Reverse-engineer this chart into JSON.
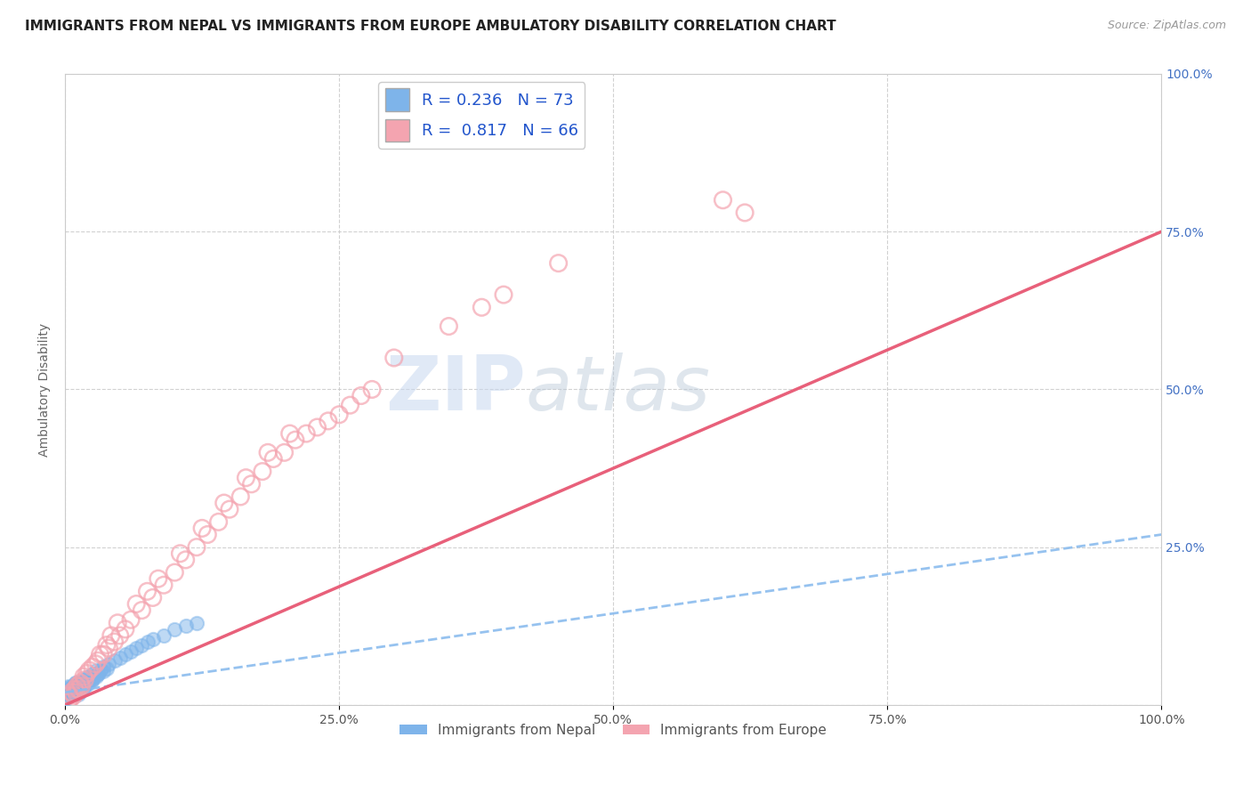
{
  "title": "IMMIGRANTS FROM NEPAL VS IMMIGRANTS FROM EUROPE AMBULATORY DISABILITY CORRELATION CHART",
  "source": "Source: ZipAtlas.com",
  "ylabel": "Ambulatory Disability",
  "xlim": [
    0,
    100
  ],
  "ylim": [
    0,
    100
  ],
  "x_ticks": [
    0,
    25,
    50,
    75,
    100
  ],
  "x_tick_labels": [
    "0.0%",
    "25.0%",
    "50.0%",
    "75.0%",
    "100.0%"
  ],
  "y_ticks": [
    0,
    25,
    50,
    75,
    100
  ],
  "y_tick_labels_right": [
    "",
    "25.0%",
    "50.0%",
    "75.0%",
    "100.0%"
  ],
  "nepal_color": "#7eb4ea",
  "europe_color": "#f4a4b0",
  "nepal_line_color": "#8bbcee",
  "europe_line_color": "#e8607a",
  "nepal_R": 0.236,
  "nepal_N": 73,
  "europe_R": 0.817,
  "europe_N": 66,
  "legend_label_nepal": "Immigrants from Nepal",
  "legend_label_europe": "Immigrants from Europe",
  "watermark_zip": "ZIP",
  "watermark_atlas": "atlas",
  "nepal_scatter_x": [
    0.1,
    0.15,
    0.2,
    0.25,
    0.3,
    0.35,
    0.4,
    0.45,
    0.5,
    0.55,
    0.6,
    0.65,
    0.7,
    0.75,
    0.8,
    0.85,
    0.9,
    0.95,
    1.0,
    1.1,
    1.2,
    1.3,
    1.4,
    1.5,
    1.6,
    1.7,
    1.8,
    1.9,
    2.0,
    2.1,
    2.2,
    2.3,
    2.4,
    2.5,
    2.6,
    2.8,
    3.0,
    3.2,
    3.5,
    3.8,
    4.0,
    4.5,
    5.0,
    5.5,
    6.0,
    6.5,
    7.0,
    7.5,
    8.0,
    9.0,
    10.0,
    11.0,
    12.0,
    0.1,
    0.2,
    0.3,
    0.4,
    0.5,
    0.6,
    0.7,
    0.8,
    0.9,
    1.0,
    1.2,
    1.4,
    1.6,
    1.8,
    2.0,
    2.2,
    2.5,
    2.8,
    3.0,
    3.5
  ],
  "nepal_scatter_y": [
    1.5,
    2.0,
    2.5,
    1.8,
    2.2,
    3.0,
    2.8,
    1.5,
    2.0,
    1.8,
    2.5,
    2.2,
    3.0,
    2.8,
    2.5,
    3.2,
    2.0,
    2.8,
    3.5,
    2.0,
    2.5,
    3.0,
    2.8,
    3.5,
    3.2,
    4.0,
    3.8,
    4.2,
    3.5,
    4.5,
    4.0,
    4.2,
    3.8,
    5.0,
    4.5,
    5.5,
    5.0,
    5.5,
    6.0,
    5.8,
    6.5,
    7.0,
    7.5,
    8.0,
    8.5,
    9.0,
    9.5,
    10.0,
    10.5,
    11.0,
    12.0,
    12.5,
    13.0,
    1.0,
    1.2,
    1.6,
    2.0,
    2.4,
    1.9,
    2.3,
    2.7,
    3.1,
    3.5,
    1.7,
    2.1,
    2.5,
    2.9,
    3.3,
    3.7,
    4.1,
    4.5,
    4.9,
    5.3
  ],
  "europe_scatter_x": [
    0.3,
    0.5,
    0.8,
    1.0,
    1.2,
    1.5,
    1.8,
    2.0,
    2.5,
    3.0,
    3.5,
    4.0,
    4.5,
    5.0,
    5.5,
    6.0,
    7.0,
    8.0,
    9.0,
    10.0,
    11.0,
    12.0,
    13.0,
    14.0,
    15.0,
    16.0,
    17.0,
    18.0,
    19.0,
    20.0,
    21.0,
    22.0,
    23.0,
    24.0,
    25.0,
    26.0,
    27.0,
    28.0,
    60.0,
    62.0,
    0.4,
    0.6,
    0.9,
    1.1,
    1.4,
    1.7,
    2.2,
    2.8,
    3.2,
    3.8,
    4.2,
    4.8,
    6.5,
    7.5,
    8.5,
    10.5,
    12.5,
    14.5,
    16.5,
    18.5,
    20.5,
    30.0,
    35.0,
    38.0,
    40.0,
    45.0
  ],
  "europe_scatter_y": [
    0.5,
    1.0,
    1.5,
    2.0,
    2.5,
    3.0,
    4.0,
    5.0,
    6.0,
    7.0,
    8.0,
    9.0,
    10.0,
    11.0,
    12.0,
    13.5,
    15.0,
    17.0,
    19.0,
    21.0,
    23.0,
    25.0,
    27.0,
    29.0,
    31.0,
    33.0,
    35.0,
    37.0,
    39.0,
    40.0,
    42.0,
    43.0,
    44.0,
    45.0,
    46.0,
    47.5,
    49.0,
    50.0,
    80.0,
    78.0,
    1.5,
    2.0,
    2.5,
    3.0,
    3.5,
    4.5,
    5.5,
    6.5,
    8.0,
    9.5,
    11.0,
    13.0,
    16.0,
    18.0,
    20.0,
    24.0,
    28.0,
    32.0,
    36.0,
    40.0,
    43.0,
    55.0,
    60.0,
    63.0,
    65.0,
    70.0
  ],
  "bg_color": "#ffffff",
  "grid_color": "#cccccc",
  "title_fontsize": 11,
  "axis_label_fontsize": 10,
  "tick_fontsize": 10,
  "legend_fontsize": 13,
  "europe_line_x0": 0,
  "europe_line_y0": 0,
  "europe_line_x1": 100,
  "europe_line_y1": 75,
  "nepal_line_x0": 0,
  "nepal_line_y0": 2,
  "nepal_line_x1": 100,
  "nepal_line_y1": 27
}
